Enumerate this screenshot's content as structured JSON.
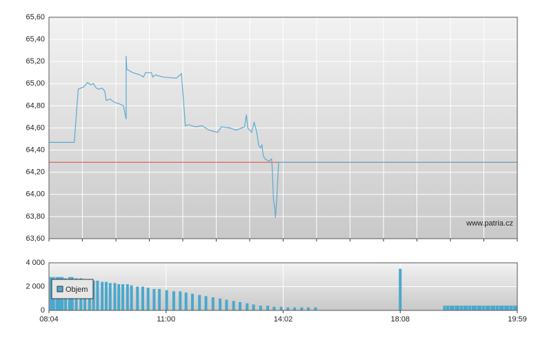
{
  "chart_data": [
    {
      "type": "line",
      "ylim": [
        63.6,
        65.6
      ],
      "yticks": [
        {
          "value": 63.6,
          "label": "63,60"
        },
        {
          "value": 63.8,
          "label": "63,80"
        },
        {
          "value": 64.0,
          "label": "64,00"
        },
        {
          "value": 64.2,
          "label": "64,20"
        },
        {
          "value": 64.4,
          "label": "64,40"
        },
        {
          "value": 64.6,
          "label": "64,60"
        },
        {
          "value": 64.8,
          "label": "64,80"
        },
        {
          "value": 65.0,
          "label": "65,00"
        },
        {
          "value": 65.2,
          "label": "65,20"
        },
        {
          "value": 65.4,
          "label": "65,40"
        },
        {
          "value": 65.6,
          "label": "65,60"
        }
      ],
      "grid": true,
      "reference_line": 64.29,
      "reference_color": "#e0463c",
      "watermark": "www.patria.cz",
      "series": [
        {
          "color": "#5aaad0",
          "x": [
            484,
            522,
            528,
            536,
            542,
            547,
            551,
            555,
            559,
            564,
            568,
            570,
            576,
            583,
            589,
            596,
            600,
            600,
            601,
            610,
            621,
            626,
            629,
            638,
            640,
            644,
            655,
            676,
            684,
            690,
            695,
            706,
            716,
            727,
            740,
            746,
            759,
            769,
            782,
            785,
            787,
            793,
            797,
            801,
            804,
            807,
            809,
            811,
            814,
            820,
            824,
            825,
            827,
            829,
            830,
            832,
            835,
            1199
          ],
          "values": [
            64.47,
            64.47,
            64.95,
            64.97,
            65.01,
            64.99,
            65.0,
            64.96,
            64.95,
            64.96,
            64.93,
            64.85,
            64.86,
            64.83,
            64.82,
            64.8,
            64.68,
            65.25,
            65.13,
            65.1,
            65.08,
            65.06,
            65.1,
            65.1,
            65.06,
            65.08,
            65.06,
            65.05,
            65.09,
            64.62,
            64.63,
            64.61,
            64.62,
            64.58,
            64.56,
            64.61,
            64.6,
            64.58,
            64.61,
            64.72,
            64.6,
            64.56,
            64.65,
            64.56,
            64.44,
            64.42,
            64.45,
            64.35,
            64.32,
            64.3,
            64.32,
            64.25,
            63.95,
            63.88,
            63.79,
            63.95,
            64.29,
            64.29
          ]
        }
      ]
    },
    {
      "type": "bar",
      "ylim": [
        0,
        4000
      ],
      "yticks": [
        0,
        {
          "value": 2000,
          "label": "2 000"
        },
        {
          "value": 4000,
          "label": "4 000"
        }
      ],
      "xticks": [
        {
          "value": 484,
          "label": "08:04"
        },
        {
          "value": 660,
          "label": "11:00"
        },
        {
          "value": 842,
          "label": "14:02"
        },
        {
          "value": 1088,
          "label": "18:08"
        },
        {
          "value": 1199,
          "label": "19:59"
        }
      ],
      "grid": true,
      "series": [
        {
          "name": "Objem",
          "color": "#4aa8cc",
          "x": [
            487,
            491,
            496,
            500,
            504,
            509,
            515,
            519,
            525,
            532,
            538,
            545,
            551,
            557,
            564,
            570,
            576,
            583,
            589,
            595,
            602,
            608,
            617,
            625,
            633,
            642,
            650,
            661,
            672,
            682,
            691,
            701,
            712,
            722,
            733,
            744,
            754,
            765,
            775,
            786,
            796,
            807,
            818,
            828,
            839,
            852,
            866,
            881,
            895,
            910,
            1088,
            1130,
            1133,
            1136,
            1138,
            1141,
            1143,
            1146,
            1149,
            1151,
            1154,
            1157,
            1159,
            1162,
            1164,
            1167,
            1170,
            1172,
            1175,
            1177,
            1180,
            1183,
            1185,
            1188,
            1190,
            1193,
            1196,
            1198
          ],
          "values": [
            2800,
            2800,
            2800,
            2800,
            2800,
            2700,
            2800,
            2800,
            2700,
            2700,
            2600,
            2600,
            2500,
            2500,
            2400,
            2400,
            2300,
            2300,
            2200,
            2200,
            2200,
            2100,
            2000,
            2000,
            1900,
            1800,
            1800,
            1700,
            1600,
            1600,
            1500,
            1400,
            1300,
            1200,
            1100,
            1000,
            900,
            800,
            700,
            600,
            500,
            400,
            400,
            300,
            300,
            250,
            250,
            250,
            250,
            250,
            3500,
            400,
            400,
            400,
            400,
            400,
            400,
            400,
            400,
            400,
            400,
            400,
            400,
            400,
            400,
            400,
            400,
            400,
            400,
            400,
            400,
            400,
            400,
            400,
            400,
            400,
            400,
            400
          ]
        }
      ]
    }
  ]
}
